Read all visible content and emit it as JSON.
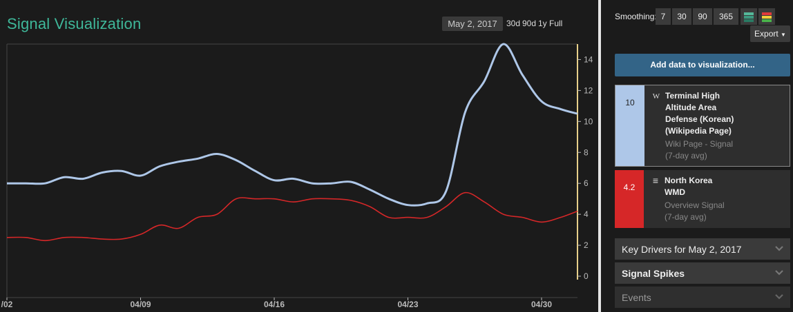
{
  "title": "Signal Visualization",
  "selected_date": "May 2, 2017",
  "range_buttons": [
    "30d",
    "90d",
    "1y",
    "Full"
  ],
  "smoothing": {
    "label": "Smoothing:",
    "options": [
      "7",
      "30",
      "90",
      "365"
    ]
  },
  "export_label": "Export",
  "add_data_label": "Add data to visualization...",
  "signals": [
    {
      "value": "10",
      "color": "#aec7e8",
      "icon": "wikipedia-icon",
      "icon_glyph": "W",
      "name_lines": [
        "Terminal High",
        "Altitude Area",
        "Defense (Korean)",
        "(Wikipedia Page)"
      ],
      "type": "Wiki Page - Signal",
      "avg": "(7-day avg)"
    },
    {
      "value": "4.2",
      "color": "#d62728",
      "icon": "list-icon",
      "icon_glyph": "≡",
      "name_lines": [
        "North Korea",
        "WMD"
      ],
      "type": "Overview Signal",
      "avg": "(7-day avg)"
    }
  ],
  "accordions": [
    {
      "label": "Key Drivers for May 2, 2017"
    },
    {
      "label": "Signal Spikes"
    },
    {
      "label": "Events"
    }
  ],
  "chart_data": {
    "type": "line",
    "x_tick_labels": [
      "/02",
      "04/09",
      "04/16",
      "04/23",
      "04/30"
    ],
    "y_ticks": [
      0,
      2,
      4,
      6,
      8,
      10,
      12,
      14
    ],
    "ylim": [
      0,
      15
    ],
    "x": [
      "04/02",
      "04/03",
      "04/04",
      "04/05",
      "04/06",
      "04/07",
      "04/08",
      "04/09",
      "04/10",
      "04/11",
      "04/12",
      "04/13",
      "04/14",
      "04/15",
      "04/16",
      "04/17",
      "04/18",
      "04/19",
      "04/20",
      "04/21",
      "04/22",
      "04/23",
      "04/24",
      "04/25",
      "04/26",
      "04/27",
      "04/28",
      "04/29",
      "04/30",
      "05/01",
      "05/02"
    ],
    "series": [
      {
        "color": "#aec7e8",
        "values": [
          6.0,
          6.0,
          6.0,
          6.4,
          6.3,
          6.7,
          6.8,
          6.5,
          7.1,
          7.4,
          7.6,
          7.9,
          7.5,
          6.8,
          6.2,
          6.3,
          6.0,
          6.0,
          6.1,
          5.6,
          5.0,
          4.6,
          4.7,
          5.5,
          10.6,
          12.6,
          15.0,
          13.0,
          11.3,
          10.8,
          10.5
        ]
      },
      {
        "color": "#d62728",
        "values": [
          2.5,
          2.5,
          2.3,
          2.5,
          2.5,
          2.4,
          2.4,
          2.7,
          3.3,
          3.1,
          3.8,
          4.0,
          5.0,
          5.0,
          5.0,
          4.8,
          5.0,
          5.0,
          4.9,
          4.5,
          3.8,
          3.8,
          3.8,
          4.5,
          5.4,
          4.8,
          4.0,
          3.8,
          3.5,
          3.8,
          4.2
        ]
      }
    ],
    "grid": false,
    "current_marker_color": "#e8d08a"
  }
}
